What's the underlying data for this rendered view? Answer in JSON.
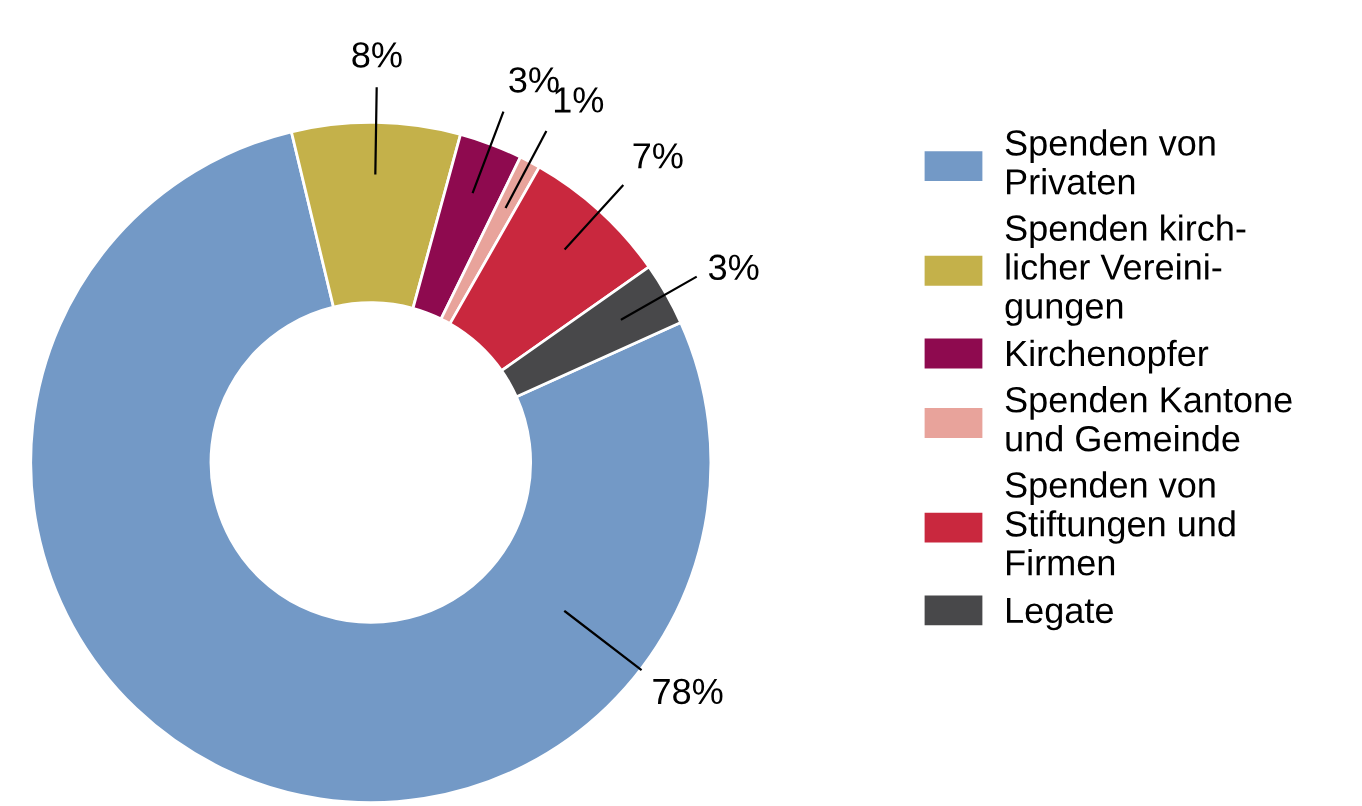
{
  "chart_data": {
    "type": "donut",
    "categories": [
      "Spenden von\nPrivaten",
      "Spenden kirch-\nlicher Vereini-\ngungen",
      "Kirchenopfer",
      "Spenden Kantone\nund Gemeinde",
      "Spenden von\nStiftungen und\nFirmen",
      "Legate"
    ],
    "values": [
      78,
      8,
      3,
      1,
      7,
      3
    ],
    "colors": [
      "#7399c6",
      "#c4b14a",
      "#8e0a4f",
      "#e8a39b",
      "#c9283e",
      "#48484a"
    ],
    "value_labels": [
      "78%",
      "8%",
      "3%",
      "1%",
      "7%",
      "3%"
    ],
    "legend": "right"
  }
}
